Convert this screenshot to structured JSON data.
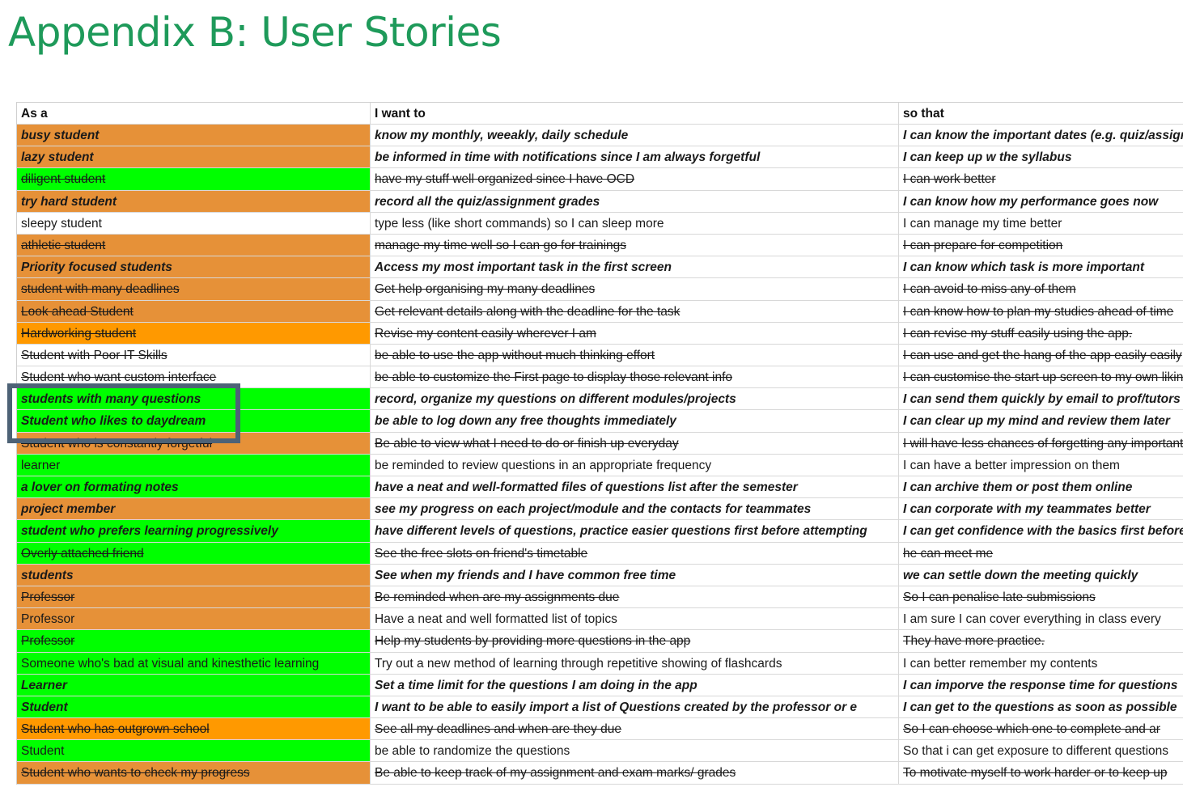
{
  "title": "Appendix B: User Stories",
  "colors": {
    "title": "#1e9a5a",
    "orange": "#e69138",
    "bright_orange": "#ff9900",
    "green": "#00ff00",
    "white": "#ffffff",
    "selection_border": "#4d6276"
  },
  "columns": [
    "As a",
    "I want to",
    "so that"
  ],
  "rows": [
    {
      "as_a": "busy student",
      "want": "know my monthly, weeakly, daily schedule",
      "so_that": "I can know the important dates (e.g. quiz/assignment deadlines)",
      "color": "#e69138",
      "style": "bold"
    },
    {
      "as_a": "lazy student",
      "want": "be informed in time with notifications since I am always forgetful",
      "so_that": "I can keep up w the syllabus",
      "color": "#e69138",
      "style": "bold"
    },
    {
      "as_a": "diligent student",
      "want": "have my stuff well organized since I have OCD",
      "so_that": "I can work better",
      "color": "#00ff00",
      "style": "strike"
    },
    {
      "as_a": "try hard student",
      "want": "record all the quiz/assignment grades",
      "so_that": "I can know how my performance goes now",
      "color": "#e69138",
      "style": "bold"
    },
    {
      "as_a": "sleepy student",
      "want": "type less (like short commands) so I can sleep more",
      "so_that": "I can manage my time better",
      "color": "#ffffff",
      "style": "normal"
    },
    {
      "as_a": "athletic student",
      "want": "manage my time well so I can go for trainings",
      "so_that": "I can prepare for competition",
      "color": "#e69138",
      "style": "strike"
    },
    {
      "as_a": "Priority focused students",
      "want": "Access my most important task in the first screen",
      "so_that": "I can know which task is more important",
      "color": "#e69138",
      "style": "bold"
    },
    {
      "as_a": "student with many deadlines ",
      "want": "Get help organising my many deadlines",
      "so_that": "I can avoid to miss any of them ",
      "color": "#e69138",
      "style": "strike"
    },
    {
      "as_a": "Look ahead Student",
      "want": "Get relevant details along with the deadline for the task",
      "so_that": "I can know how to plan my studies ahead of time",
      "color": "#e69138",
      "style": "strike"
    },
    {
      "as_a": "Hardworking student",
      "want": "Revise my content easily wherever I am",
      "so_that": "I can revise my stuff easily using the app.",
      "color": "#ff9900",
      "style": "strike"
    },
    {
      "as_a": "Student with Poor IT Skills",
      "want": "be able to use the app without much thinking effort",
      "so_that": "I can use and get the hang of the app easily easily",
      "color": "#ffffff",
      "style": "strike"
    },
    {
      "as_a": "Student who want custom interface",
      "want": "be able to customize the First page to display those relevant info",
      "so_that": "I can customise the start up screen to my own liking",
      "color": "#ffffff",
      "style": "strike"
    },
    {
      "as_a": "students with many questions",
      "want": "record, organize my questions on different modules/projects",
      "so_that": "I can send them quickly by email to prof/tutors",
      "color": "#00ff00",
      "style": "bold"
    },
    {
      "as_a": "Student who likes to daydream",
      "want": "be able to log down any free thoughts immediately",
      "so_that": "I can clear up my mind and review them later",
      "color": "#00ff00",
      "style": "bold"
    },
    {
      "as_a": "Student who is constantly forgetful",
      "want": "Be able to view what I need to do or finish up everyday",
      "so_that": "I will have less chances of forgetting any important task",
      "color": "#e69138",
      "style": "strike"
    },
    {
      "as_a": "learner",
      "want": "be reminded to review questions in an appropriate frequency",
      "so_that": "I can have a better impression on them",
      "color": "#00ff00",
      "style": "normal"
    },
    {
      "as_a": "a lover on formating notes",
      "want": "have a neat and well-formatted files of questions list after the semester",
      "so_that": "I can archive them or post them online",
      "color": "#00ff00",
      "style": "bold"
    },
    {
      "as_a": "project member",
      "want": "see my progress on each project/module and the contacts for teammates",
      "so_that": "I can corporate with my teammates better",
      "color": "#e69138",
      "style": "bold"
    },
    {
      "as_a": "student who prefers learning progressively",
      "want": "have different levels of questions, practice easier questions first before attempting",
      "so_that": "I can get confidence with the basics first before",
      "color": "#00ff00",
      "style": "bold"
    },
    {
      "as_a": "Overly attached friend",
      "want": "See the free slots on friend's timetable",
      "so_that": "he can meet me",
      "color": "#00ff00",
      "style": "strike"
    },
    {
      "as_a": "students",
      "want": "See when my friends and I have common free time",
      "so_that": "we can settle down the meeting quickly",
      "color": "#e69138",
      "style": "bold"
    },
    {
      "as_a": "Professor ",
      "want": "Be reminded when are my assignments due",
      "so_that": "So I can penalise late submissions",
      "color": "#e69138",
      "style": "strike"
    },
    {
      "as_a": "Professor",
      "want": "Have a neat and well formatted list of topics",
      "so_that": "I am sure I can cover everything in class every",
      "color": "#e69138",
      "style": "normal"
    },
    {
      "as_a": "Professor ",
      "want": "Help my students by providing more questions in the app",
      "so_that": "They have more practice.",
      "color": "#00ff00",
      "style": "strike"
    },
    {
      "as_a": "Someone who's bad at visual and kinesthetic learning",
      "want": "Try out a new method of learning through repetitive showing of flashcards",
      "so_that": "I can better remember my contents",
      "color": "#00ff00",
      "style": "normal"
    },
    {
      "as_a": "Learner",
      "want": "Set a time limit for the questions I am doing in the app",
      "so_that": "I can imporve the response time for questions",
      "color": "#00ff00",
      "style": "bold"
    },
    {
      "as_a": "Student",
      "want": "I want to be able to easily import a list of Questions created by the professor or e",
      "so_that": "I can get to the questions as soon as possible",
      "color": "#00ff00",
      "style": "bold"
    },
    {
      "as_a": "Student who has outgrown school",
      "want": "See all my deadlines and when are they due",
      "so_that": "So I can choose which one to complete and ar",
      "color": "#ff9900",
      "style": "strike"
    },
    {
      "as_a": "Student",
      "want": "be able to randomize the questions",
      "so_that": "So that i can get exposure to different questions",
      "color": "#00ff00",
      "style": "normal"
    },
    {
      "as_a": "Student who wants to check my progress",
      "want": "Be able to keep track of my assignment and exam marks/ grades",
      "so_that": "To motivate myself to work harder or to keep up",
      "color": "#e69138",
      "style": "strike"
    }
  ]
}
